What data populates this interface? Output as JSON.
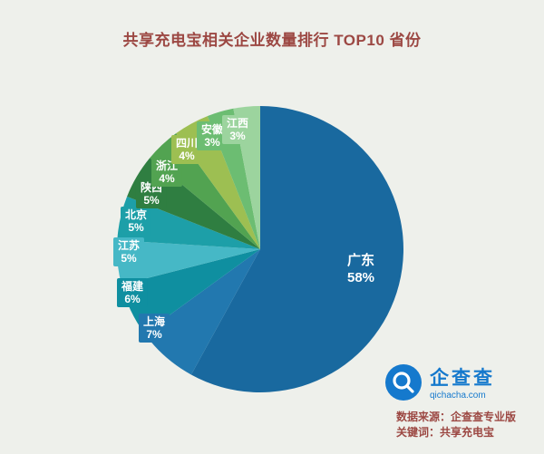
{
  "title": "共享充电宝相关企业数量排行 TOP10 省份",
  "colors": {
    "background": "#eef0eb",
    "title_text": "#9c4843",
    "brand_blue": "#1579cd"
  },
  "chart_data": {
    "type": "pie",
    "title": "共享充电宝相关企业数量排行 TOP10 省份",
    "unit": "%",
    "legend": "none",
    "label_style": "slice-colored chip with province name above percent; largest slice labeled inside in white",
    "slices": [
      {
        "name": "广东",
        "value": 58,
        "color": "#19699f"
      },
      {
        "name": "上海",
        "value": 7,
        "color": "#2278af"
      },
      {
        "name": "福建",
        "value": 6,
        "color": "#0f8fa0"
      },
      {
        "name": "江苏",
        "value": 5,
        "color": "#46b8c6"
      },
      {
        "name": "北京",
        "value": 5,
        "color": "#1d9fa8"
      },
      {
        "name": "陕西",
        "value": 5,
        "color": "#2f7e41"
      },
      {
        "name": "浙江",
        "value": 4,
        "color": "#52a351"
      },
      {
        "name": "四川",
        "value": 4,
        "color": "#9dbf52"
      },
      {
        "name": "安徽",
        "value": 3,
        "color": "#6cbd72"
      },
      {
        "name": "江西",
        "value": 3,
        "color": "#9cd49e"
      }
    ]
  },
  "branding": {
    "name": "企查查",
    "domain": "qichacha.com"
  },
  "footer": {
    "source": "数据来源：企查查专业版",
    "keyword": "关键词：共享充电宝"
  }
}
